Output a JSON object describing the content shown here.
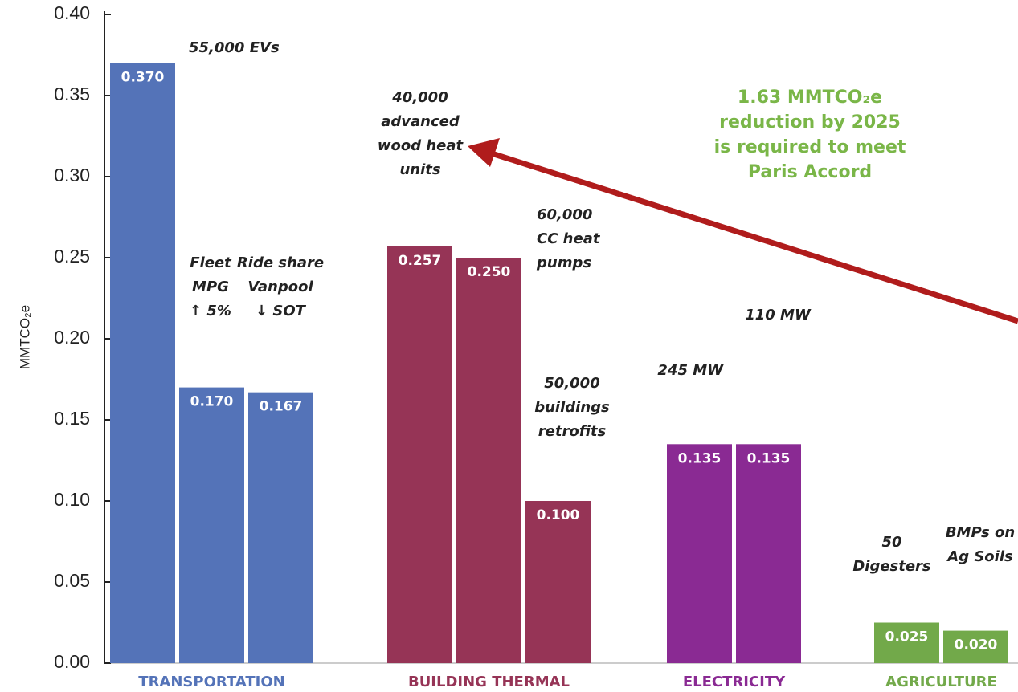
{
  "chart_data": {
    "type": "bar",
    "y_label": "MMTCO₂e",
    "ylim": [
      0,
      0.4
    ],
    "yticks": [
      {
        "value": 0,
        "label": "0.00"
      },
      0.05,
      {
        "value": 0.1,
        "label": "0.10"
      },
      0.15,
      {
        "value": 0.2,
        "label": "0.20"
      },
      0.25,
      {
        "value": 0.3,
        "label": "0.30"
      },
      0.35,
      {
        "value": 0.4,
        "label": "0.40"
      }
    ],
    "annotation": [
      "1.63 MMTCO₂e",
      "reduction by 2025",
      "is required to meet",
      "Paris Accord"
    ],
    "groups": [
      {
        "name": "TRANSPORTATION",
        "color": "#5473b8",
        "categories": [
          [
            "55,000 EVs"
          ],
          [
            "Fleet",
            "MPG",
            "↑ 5%"
          ],
          [
            "Ride share",
            "Vanpool",
            "↓ SOT"
          ]
        ],
        "values": [
          0.37,
          0.17,
          0.167
        ],
        "value_labels": [
          "0.370",
          "0.170",
          "0.167"
        ]
      },
      {
        "name": "BUILDING THERMAL",
        "color": "#963456",
        "categories": [
          [
            "40,000",
            "advanced",
            "wood heat",
            "units"
          ],
          [
            "60,000",
            "CC heat",
            "pumps"
          ],
          [
            "50,000",
            "buildings",
            "retrofits"
          ]
        ],
        "values": [
          0.257,
          0.25,
          0.1
        ],
        "value_labels": [
          "0.257",
          "0.250",
          "0.100"
        ]
      },
      {
        "name": "ELECTRICITY",
        "color": "#8a2a93",
        "categories": [
          [
            "245 MW"
          ],
          [
            "110 MW"
          ]
        ],
        "values": [
          0.135,
          0.135
        ],
        "value_labels": [
          "0.135",
          "0.135"
        ]
      },
      {
        "name": "AGRICULTURE",
        "color": "#72a94a",
        "categories": [
          [
            "50",
            "Digesters"
          ],
          [
            "BMPs on",
            "Ag Soils"
          ]
        ],
        "values": [
          0.025,
          0.02
        ],
        "value_labels": [
          "0.025",
          "0.020"
        ]
      }
    ]
  }
}
